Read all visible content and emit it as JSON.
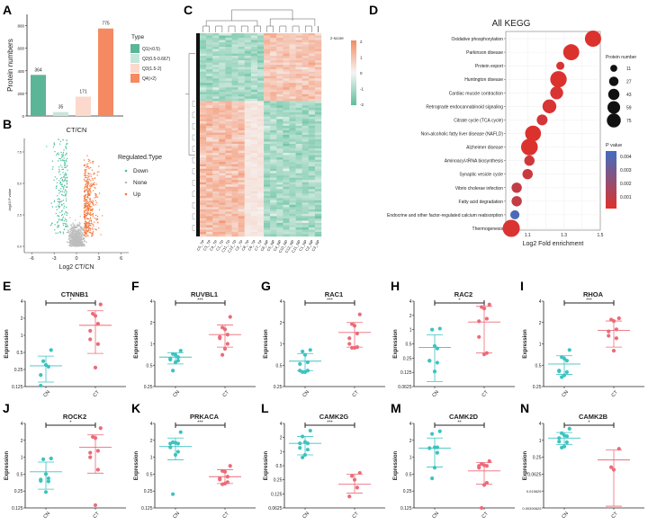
{
  "colors": {
    "q1": "#5bb597",
    "q2": "#c6e6da",
    "q3": "#fbd9cc",
    "q4": "#f58a62",
    "down": "#4fc1a0",
    "none": "#bdbdbd",
    "up": "#f47c43",
    "cn": "#3cc3c0",
    "ct": "#ec6b78",
    "heat_low": "#5bbf9a",
    "heat_mid": "#f5f5f5",
    "heat_high": "#f58a62",
    "pval_low": "#e0312b",
    "pval_high": "#3f6ec2",
    "bar_black": "#222222"
  },
  "chart_data": [
    {
      "panel": "A",
      "type": "bar",
      "title": "",
      "xlabel": "CT/CN",
      "ylabel": "Protein numbers",
      "ylim": [
        0,
        900
      ],
      "yticks": [
        0,
        200,
        400,
        600,
        800
      ],
      "categories": [
        "Q1(<0.5)",
        "Q2(0.5-0.667)",
        "Q3(1.5-2)",
        "Q4(>2)"
      ],
      "values": [
        364,
        35,
        171,
        775
      ],
      "legend_title": "Type",
      "legend": [
        "Q1(<0.5)",
        "Q2(0.5-0.667)",
        "Q3(1.5-2)",
        "Q4(>2)"
      ]
    },
    {
      "panel": "B",
      "type": "scatter",
      "title": "CT/CN",
      "xlabel": "Log2 CT/CN",
      "ylabel": "-log10 P value",
      "xlim": [
        -7,
        7
      ],
      "ylim": [
        -0.5,
        9
      ],
      "xticks": [
        -6,
        -3,
        0,
        3,
        6
      ],
      "yticks": [
        0.0,
        2.5,
        5.0,
        7.5
      ],
      "ytick_labels": [
        "0.0",
        "2.5",
        "5.0",
        "7.5"
      ],
      "legend_title": "Regulated.Type",
      "legend": [
        "Down",
        "None",
        "Up"
      ],
      "series": [
        {
          "name": "Down",
          "approx_count": 364
        },
        {
          "name": "None",
          "approx_count": 2000
        },
        {
          "name": "Up",
          "approx_count": 775
        }
      ]
    },
    {
      "panel": "C",
      "type": "heatmap",
      "legend_title": "z-score",
      "scale_ticks": [
        2,
        1,
        0,
        -1,
        -2
      ],
      "columns": [
        "C5_TP",
        "C3_TP",
        "C4_TP",
        "C1_TP",
        "C11_TP",
        "C12_TP",
        "C2_TP",
        "C8_TP",
        "C6_TP",
        "C7_TP",
        "C6_NP",
        "C5_NP",
        "C4_NP",
        "C10_NP",
        "C12_NP",
        "C11_NP",
        "C1_NP",
        "C2_NP",
        "C3_NP"
      ],
      "column_groups": {
        "TP_count": 10,
        "NP_count": 9
      },
      "row_clusters": [
        {
          "name": "up_in_NP",
          "fraction": 0.33,
          "TP": -1,
          "NP": 1
        },
        {
          "name": "up_in_TP",
          "fraction": 0.67,
          "TP": 1,
          "NP": -1
        }
      ]
    },
    {
      "panel": "D",
      "type": "scatter",
      "title": "All KEGG",
      "xlabel": "Log2 Fold enrichment",
      "xlim": [
        0.98,
        1.5
      ],
      "xticks": [
        1.1,
        1.3,
        1.5
      ],
      "size_legend_title": "Protein number",
      "size_legend": [
        11,
        27,
        43,
        59,
        75
      ],
      "color_legend_title": "P value",
      "color_legend_ticks": [
        0.004,
        0.003,
        0.002,
        0.001
      ],
      "color_range": [
        0,
        0.0045
      ],
      "terms": [
        {
          "name": "Oxidative phosphorylation",
          "x": 1.46,
          "size": 70,
          "p": 0.0001
        },
        {
          "name": "Parkinson disease",
          "x": 1.34,
          "size": 68,
          "p": 0.0001
        },
        {
          "name": "Protein export",
          "x": 1.28,
          "size": 11,
          "p": 0.0002
        },
        {
          "name": "Huntington disease",
          "x": 1.27,
          "size": 72,
          "p": 0.0001
        },
        {
          "name": "Cardiac muscle contraction",
          "x": 1.26,
          "size": 40,
          "p": 0.0002
        },
        {
          "name": "Retrograde endocannabinoid signaling",
          "x": 1.22,
          "size": 47,
          "p": 0.0002
        },
        {
          "name": "Citrate cycle (TCA cycle)",
          "x": 1.18,
          "size": 25,
          "p": 0.0004
        },
        {
          "name": "Non-alcoholic fatty liver disease (NAFLD)",
          "x": 1.13,
          "size": 66,
          "p": 0.0001
        },
        {
          "name": "Alzheimer disease",
          "x": 1.11,
          "size": 75,
          "p": 0.0001
        },
        {
          "name": "Aminoacyl-tRNA biosynthesis",
          "x": 1.11,
          "size": 22,
          "p": 0.0005
        },
        {
          "name": "Synaptic vesicle cycle",
          "x": 1.1,
          "size": 22,
          "p": 0.0006
        },
        {
          "name": "Vibrio cholerae infection",
          "x": 1.04,
          "size": 22,
          "p": 0.0008
        },
        {
          "name": "Fatty acid degradation",
          "x": 1.04,
          "size": 22,
          "p": 0.0008
        },
        {
          "name": "Endocrine and other factor-regulated calcium reabsorption",
          "x": 1.03,
          "size": 16,
          "p": 0.0042
        },
        {
          "name": "Thermogenesis",
          "x": 1.01,
          "size": 80,
          "p": 0.0002
        }
      ]
    },
    {
      "panel": "E",
      "type": "scatter",
      "title": "CTNNB1",
      "ylabel": "Expression",
      "categories": [
        "CN",
        "CT"
      ],
      "yticks": [
        0.125,
        0.25,
        0.5,
        1,
        2,
        4
      ],
      "sig": "*",
      "groups": [
        {
          "name": "CN",
          "values": [
            0.55,
            0.35,
            0.3,
            0.28,
            0.2,
            0.13
          ],
          "mean": 0.29,
          "sd_low": 0.15,
          "sd_high": 0.43
        },
        {
          "name": "CT",
          "values": [
            3.5,
            2.4,
            2.2,
            1.6,
            1.2,
            0.85,
            0.7,
            0.27
          ],
          "mean": 1.5,
          "sd_low": 0.48,
          "sd_high": 2.7
        }
      ]
    },
    {
      "panel": "F",
      "type": "scatter",
      "title": "RUVBL1",
      "ylabel": "Expression",
      "categories": [
        "CN",
        "CT"
      ],
      "yticks": [
        0.25,
        0.5,
        1,
        2,
        4
      ],
      "sig": "***",
      "groups": [
        {
          "name": "CN",
          "values": [
            0.8,
            0.72,
            0.7,
            0.65,
            0.62,
            0.6,
            0.58,
            0.55,
            0.42
          ],
          "mean": 0.65,
          "sd_low": 0.52,
          "sd_high": 0.75
        },
        {
          "name": "CT",
          "values": [
            2.4,
            1.7,
            1.6,
            1.35,
            1.25,
            1.2,
            1.0,
            0.85,
            0.7
          ],
          "mean": 1.35,
          "sd_low": 0.9,
          "sd_high": 1.85
        }
      ]
    },
    {
      "panel": "G",
      "type": "scatter",
      "title": "RAC1",
      "ylabel": "Expression",
      "categories": [
        "CN",
        "CT"
      ],
      "yticks": [
        0.25,
        0.5,
        1,
        2,
        4
      ],
      "sig": "***",
      "groups": [
        {
          "name": "CN",
          "values": [
            0.82,
            0.78,
            0.7,
            0.55,
            0.52,
            0.42,
            0.42,
            0.4,
            0.4
          ],
          "mean": 0.57,
          "sd_low": 0.42,
          "sd_high": 0.73
        },
        {
          "name": "CT",
          "values": [
            2.6,
            1.9,
            1.8,
            1.4,
            1.2,
            1.0,
            0.9,
            0.88,
            0.88
          ],
          "mean": 1.45,
          "sd_low": 0.9,
          "sd_high": 2.0
        }
      ]
    },
    {
      "panel": "H",
      "type": "scatter",
      "title": "RAC2",
      "ylabel": "Expression",
      "categories": [
        "CN",
        "CT"
      ],
      "yticks": [
        0.0625,
        0.125,
        0.25,
        0.5,
        1,
        2,
        4
      ],
      "sig": "*",
      "groups": [
        {
          "name": "CN",
          "values": [
            1.05,
            1.0,
            0.45,
            0.4,
            0.22,
            0.22,
            0.2,
            0.13
          ],
          "mean": 0.42,
          "sd_low": 0.08,
          "sd_high": 0.78
        },
        {
          "name": "CT",
          "values": [
            3.4,
            3.0,
            2.8,
            1.7,
            1.5,
            0.7,
            0.32,
            0.3
          ],
          "mean": 1.45,
          "sd_low": 0.32,
          "sd_high": 3.1
        }
      ]
    },
    {
      "panel": "I",
      "type": "scatter",
      "title": "RHOA",
      "ylabel": "Expression",
      "categories": [
        "CN",
        "CT"
      ],
      "yticks": [
        0.25,
        0.5,
        1,
        2,
        4
      ],
      "sig": "***",
      "groups": [
        {
          "name": "CN",
          "values": [
            0.82,
            0.65,
            0.62,
            0.58,
            0.42,
            0.41,
            0.4,
            0.36,
            0.34
          ],
          "mean": 0.52,
          "sd_low": 0.37,
          "sd_high": 0.68
        },
        {
          "name": "CT",
          "values": [
            2.3,
            2.2,
            2.1,
            1.6,
            1.5,
            1.3,
            1.2,
            0.8
          ],
          "mean": 1.55,
          "sd_low": 0.9,
          "sd_high": 2.1
        }
      ]
    },
    {
      "panel": "J",
      "type": "scatter",
      "title": "ROCK2",
      "ylabel": "Expression",
      "categories": [
        "CN",
        "CT"
      ],
      "yticks": [
        0.125,
        0.25,
        0.5,
        1,
        2,
        4
      ],
      "sig": "*",
      "groups": [
        {
          "name": "CN",
          "values": [
            0.95,
            0.92,
            0.5,
            0.42,
            0.4,
            0.38,
            0.37,
            0.24
          ],
          "mean": 0.55,
          "sd_low": 0.27,
          "sd_high": 0.82
        },
        {
          "name": "CT",
          "values": [
            3.3,
            2.3,
            2.2,
            1.3,
            1.2,
            1.0,
            0.6,
            0.14
          ],
          "mean": 1.5,
          "sd_low": 0.52,
          "sd_high": 2.5
        }
      ]
    },
    {
      "panel": "K",
      "type": "scatter",
      "title": "PRKACA",
      "ylabel": "Expression",
      "categories": [
        "CN",
        "CT"
      ],
      "yticks": [
        0.125,
        0.25,
        0.5,
        1,
        2,
        4
      ],
      "sig": "***",
      "groups": [
        {
          "name": "CN",
          "values": [
            2.8,
            1.85,
            1.8,
            1.75,
            1.75,
            1.5,
            1.25,
            1.1,
            0.22
          ],
          "mean": 1.55,
          "sd_low": 0.9,
          "sd_high": 2.2
        },
        {
          "name": "CT",
          "values": [
            0.7,
            0.57,
            0.55,
            0.45,
            0.42,
            0.4,
            0.36,
            0.34,
            0.33
          ],
          "mean": 0.45,
          "sd_low": 0.34,
          "sd_high": 0.6
        }
      ]
    },
    {
      "panel": "L",
      "type": "scatter",
      "title": "CAMK2G",
      "ylabel": "Expression",
      "categories": [
        "CN",
        "CT"
      ],
      "yticks": [
        0.0625,
        0.125,
        0.25,
        0.5,
        1,
        2,
        4
      ],
      "sig": "***",
      "groups": [
        {
          "name": "CN",
          "values": [
            2.8,
            2.1,
            1.6,
            1.5,
            1.5,
            1.2,
            1.1,
            0.85,
            0.75
          ],
          "mean": 1.5,
          "sd_low": 0.85,
          "sd_high": 2.1
        },
        {
          "name": "CT",
          "values": [
            0.35,
            0.3,
            0.25,
            0.17,
            0.11
          ],
          "mean": 0.2,
          "sd_low": 0.13,
          "sd_high": 0.33
        }
      ]
    },
    {
      "panel": "M",
      "type": "scatter",
      "title": "CAMK2D",
      "ylabel": "Expression",
      "categories": [
        "CN",
        "CT"
      ],
      "yticks": [
        0.125,
        0.25,
        0.5,
        1,
        2,
        4
      ],
      "sig": "**",
      "groups": [
        {
          "name": "CN",
          "values": [
            2.9,
            2.6,
            1.5,
            1.5,
            1.45,
            1.45,
            1.2,
            0.65,
            0.42
          ],
          "mean": 1.45,
          "sd_low": 0.67,
          "sd_high": 2.2
        },
        {
          "name": "CT",
          "values": [
            0.85,
            0.76,
            0.72,
            0.7,
            0.7,
            0.65,
            0.35,
            0.32,
            0.12
          ],
          "mean": 0.57,
          "sd_low": 0.33,
          "sd_high": 0.8
        }
      ]
    },
    {
      "panel": "N",
      "type": "scatter",
      "title": "CAMK2B",
      "ylabel": "Expression",
      "categories": [
        "CN",
        "CT"
      ],
      "yticks": [
        0.00390625,
        0.015625,
        0.0625,
        0.25,
        1,
        4
      ],
      "ytick_labels": [
        "0.00390625",
        "0.015625",
        "0.0625",
        "0.25",
        "1",
        "4"
      ],
      "sig": "*",
      "groups": [
        {
          "name": "CN",
          "values": [
            2.6,
            1.8,
            1.5,
            1.4,
            1.2,
            0.9,
            0.85,
            0.6,
            0.55
          ],
          "mean": 1.2,
          "sd_low": 0.7,
          "sd_high": 1.9
        },
        {
          "name": "CT",
          "values": [
            0.5,
            0.11,
            0.09
          ],
          "mean": 0.2,
          "sd_low": 0.0045,
          "sd_high": 0.45
        }
      ]
    }
  ],
  "panel_labels": [
    "A",
    "B",
    "C",
    "D",
    "E",
    "F",
    "G",
    "H",
    "I",
    "J",
    "K",
    "L",
    "M",
    "N"
  ]
}
